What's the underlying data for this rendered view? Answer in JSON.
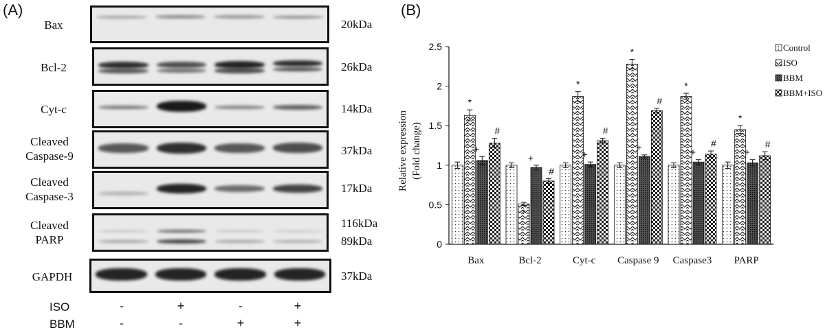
{
  "panel_a": {
    "label": "(A)",
    "blots": [
      {
        "name": "Bax",
        "kda": "20kDa"
      },
      {
        "name": "Bcl-2",
        "kda": "26kDa"
      },
      {
        "name": "Cyt-c",
        "kda": "14kDa"
      },
      {
        "name": "Cleaved\nCaspase-9",
        "kda": "37kDa"
      },
      {
        "name": "Cleaved\nCaspase-3",
        "kda": "17kDa"
      },
      {
        "name": "Cleaved\nPARP",
        "kda": "116kDa",
        "kda2": "89kDa"
      },
      {
        "name": "GAPDH",
        "kda": "37kDa"
      }
    ],
    "treatments": [
      {
        "name": "ISO",
        "signs": [
          "-",
          "+",
          "-",
          "+"
        ]
      },
      {
        "name": "BBM",
        "signs": [
          "-",
          "-",
          "+",
          "+"
        ]
      }
    ]
  },
  "panel_b": {
    "label": "(B)"
  },
  "chart_data": {
    "type": "bar",
    "title": "",
    "xlabel": "",
    "ylabel": "Relative expression (Fold change)",
    "ylabel_lines": [
      "Relative  expression",
      "(Fold change)"
    ],
    "ylim": [
      0,
      2.5
    ],
    "yticks": [
      "0",
      "0.5",
      "1",
      "1.5",
      "2",
      "2.5"
    ],
    "grid": false,
    "legend_position": "top-right",
    "categories": [
      "Bax",
      "Bcl-2",
      "Cyt-c",
      "Caspase 9",
      "Caspase3",
      "PARP"
    ],
    "series": [
      {
        "name": "Control",
        "values": [
          1.0,
          1.0,
          1.0,
          1.0,
          1.0,
          1.0
        ],
        "errors": [
          0.04,
          0.03,
          0.03,
          0.03,
          0.03,
          0.04
        ],
        "marks": [
          "",
          "",
          "",
          "",
          "",
          ""
        ]
      },
      {
        "name": "ISO",
        "values": [
          1.63,
          0.51,
          1.87,
          2.28,
          1.87,
          1.45
        ],
        "errors": [
          0.07,
          0.02,
          0.06,
          0.06,
          0.04,
          0.05
        ],
        "marks": [
          "*",
          "*",
          "*",
          "*",
          "*",
          "*"
        ]
      },
      {
        "name": "BBM",
        "values": [
          1.06,
          0.97,
          1.01,
          1.11,
          1.04,
          1.03
        ],
        "errors": [
          0.05,
          0.03,
          0.03,
          0.02,
          0.03,
          0.04
        ],
        "marks": [
          "+",
          "+",
          "+",
          "+",
          "+",
          "+"
        ]
      },
      {
        "name": "BBM+ISO",
        "values": [
          1.28,
          0.8,
          1.31,
          1.69,
          1.14,
          1.12
        ],
        "errors": [
          0.06,
          0.03,
          0.03,
          0.03,
          0.04,
          0.05
        ],
        "marks": [
          "#",
          "#",
          "#",
          "#",
          "#",
          "#"
        ]
      }
    ],
    "colors": {
      "edge": "#111111",
      "fill": "#ffffff"
    }
  }
}
